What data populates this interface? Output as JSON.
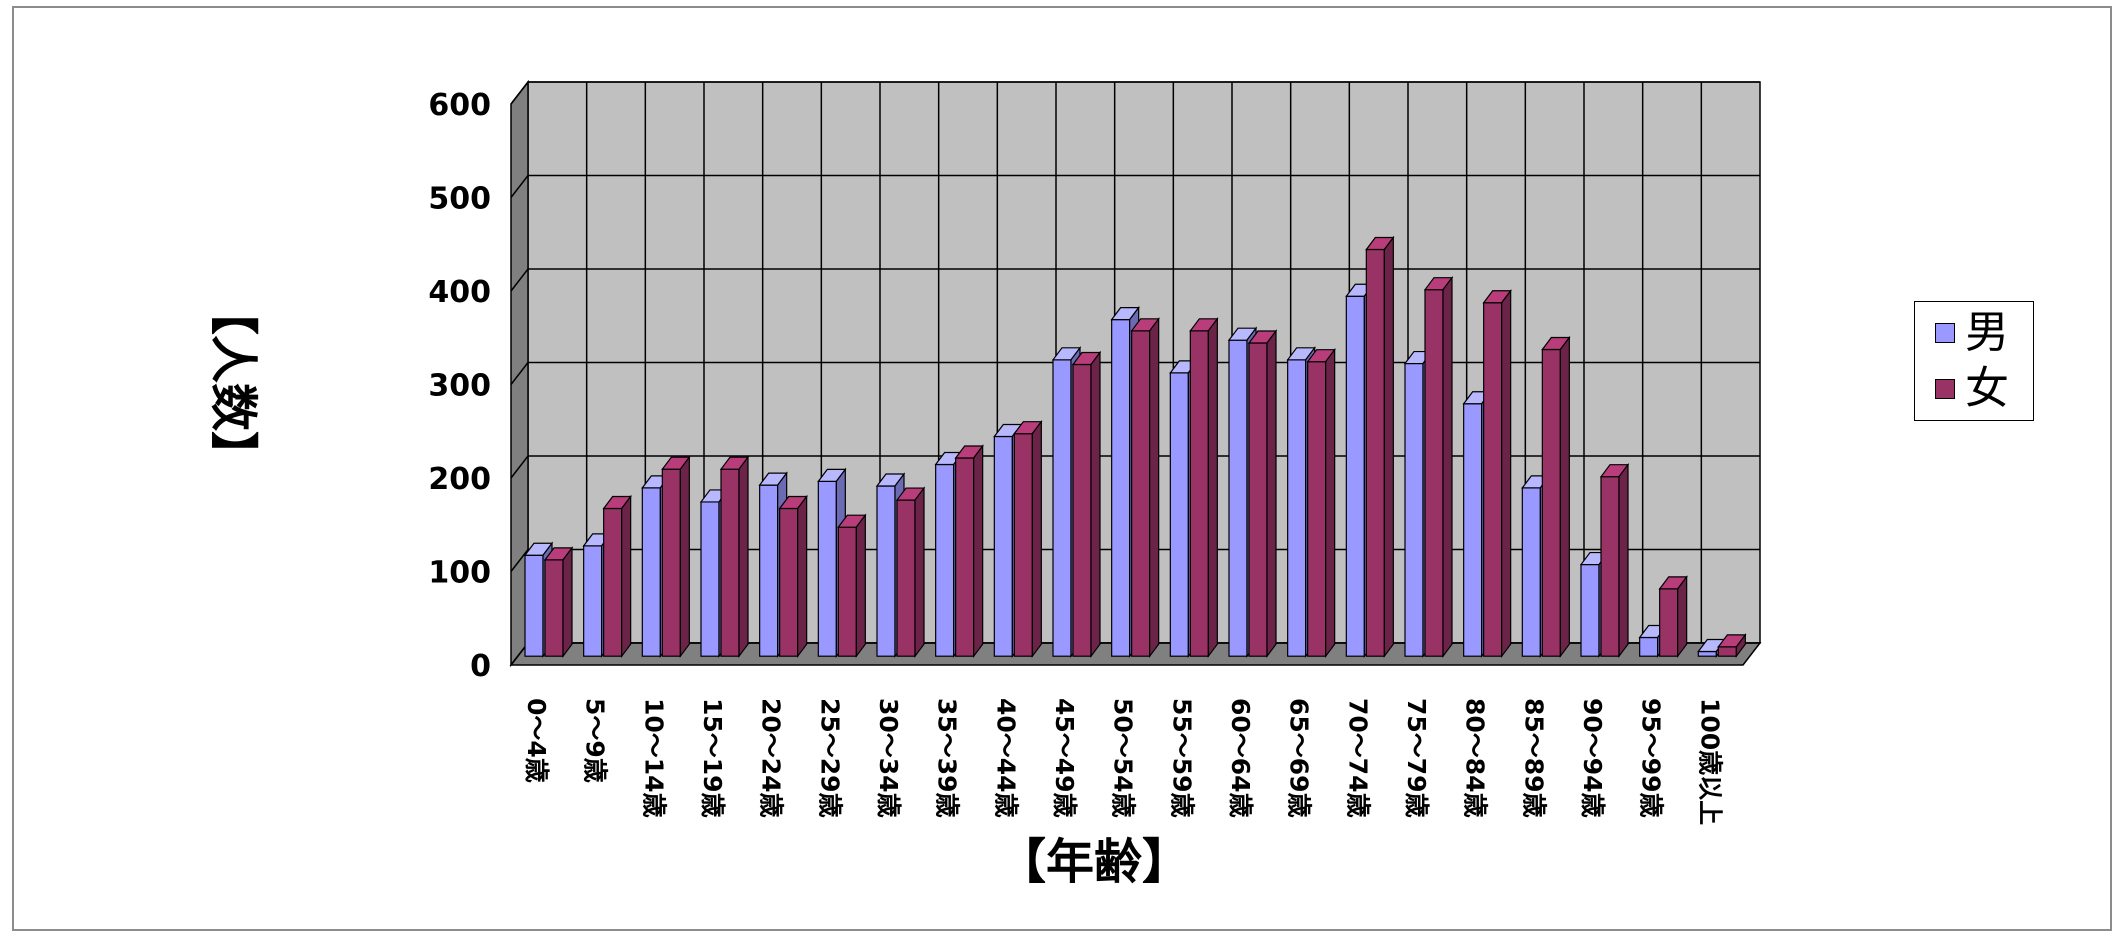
{
  "chart_data": {
    "type": "bar",
    "categories": [
      "0～4歳",
      "5～9歳",
      "10～14歳",
      "15～19歳",
      "20～24歳",
      "25～29歳",
      "30～34歳",
      "35～39歳",
      "40～44歳",
      "45～49歳",
      "50～54歳",
      "55～59歳",
      "60～64歳",
      "65～69歳",
      "70～74歳",
      "75～79歳",
      "80～84歳",
      "85～89歳",
      "90～94歳",
      "95～99歳",
      "100歳以上"
    ],
    "series": [
      {
        "name": "男",
        "values": [
          108,
          118,
          180,
          165,
          183,
          187,
          182,
          205,
          235,
          317,
          360,
          303,
          338,
          317,
          385,
          313,
          270,
          180,
          98,
          20,
          5
        ]
      },
      {
        "name": "女",
        "values": [
          103,
          158,
          200,
          200,
          158,
          138,
          167,
          212,
          238,
          312,
          348,
          348,
          335,
          315,
          435,
          392,
          378,
          328,
          192,
          72,
          10
        ]
      }
    ],
    "ylabel": "【人数】",
    "xlabel": "【年齢】",
    "ylim": [
      0,
      600
    ],
    "yticks": [
      0,
      100,
      200,
      300,
      400,
      500,
      600
    ],
    "grid": true,
    "legend_position": "right",
    "style": "3d-clustered-column",
    "colors": {
      "male": "#9999ff",
      "female": "#993366",
      "wall": "#c0c0c0",
      "side_wall": "#808080",
      "floor": "#808080"
    }
  }
}
